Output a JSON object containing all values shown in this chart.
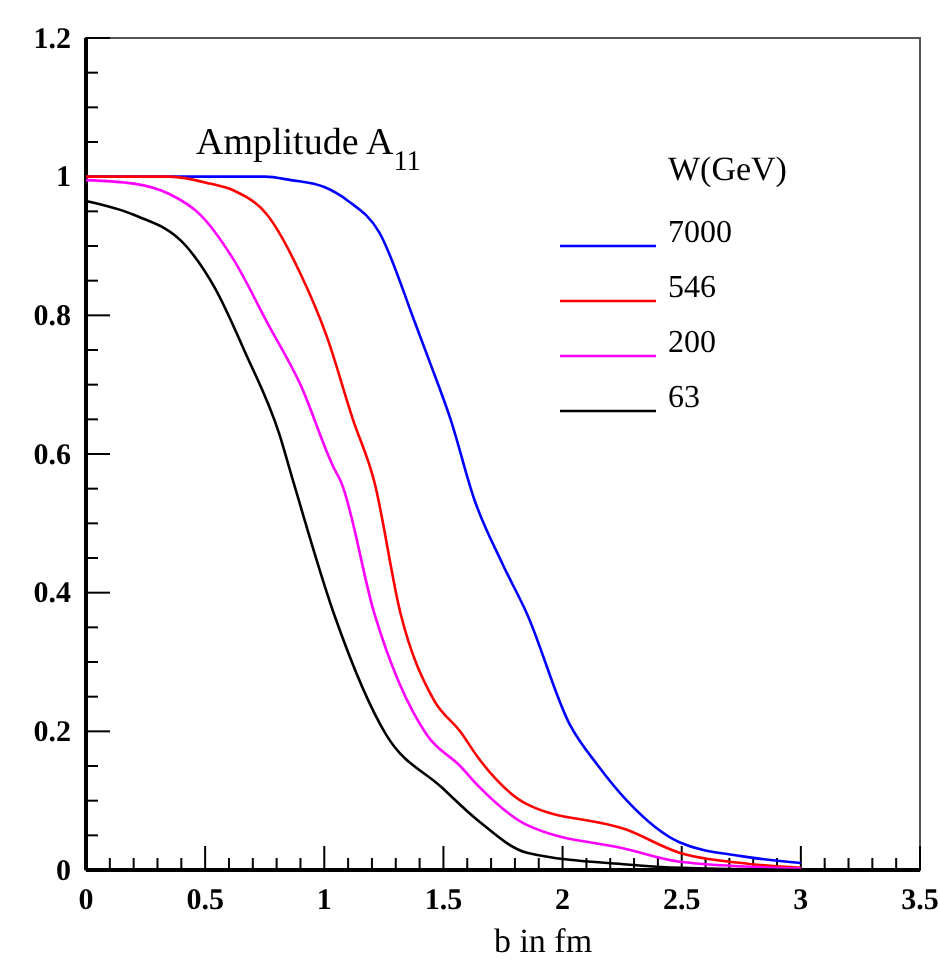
{
  "chart_data": {
    "type": "line",
    "title": "Amplitude A$_{11}$",
    "xlabel": "b in fm",
    "legend_title": "W(GeV)",
    "legend": "top right",
    "grid": false,
    "line_style": "solid",
    "marker": "none",
    "xlim": [
      0,
      3.5
    ],
    "ylim": [
      0,
      1.2
    ],
    "xticks": [
      0,
      {
        "value": 0.1,
        "label": null
      },
      {
        "value": 0.2,
        "label": null
      },
      {
        "value": 0.3,
        "label": null
      },
      {
        "value": 0.4,
        "label": null
      },
      0.5,
      {
        "value": 0.6,
        "label": null
      },
      {
        "value": 0.7,
        "label": null
      },
      {
        "value": 0.8,
        "label": null
      },
      {
        "value": 0.9,
        "label": null
      },
      1,
      {
        "value": 1.1,
        "label": null
      },
      {
        "value": 1.2,
        "label": null
      },
      {
        "value": 1.3,
        "label": null
      },
      {
        "value": 1.4,
        "label": null
      },
      1.5,
      {
        "value": 1.6,
        "label": null
      },
      {
        "value": 1.7,
        "label": null
      },
      {
        "value": 1.8,
        "label": null
      },
      {
        "value": 1.9,
        "label": null
      },
      2,
      {
        "value": 2.1,
        "label": null
      },
      {
        "value": 2.2,
        "label": null
      },
      {
        "value": 2.3,
        "label": null
      },
      {
        "value": 2.4,
        "label": null
      },
      2.5,
      {
        "value": 2.6,
        "label": null
      },
      {
        "value": 2.7,
        "label": null
      },
      {
        "value": 2.8,
        "label": null
      },
      {
        "value": 2.9,
        "label": null
      },
      3,
      {
        "value": 3.1,
        "label": null
      },
      {
        "value": 3.2,
        "label": null
      },
      {
        "value": 3.3,
        "label": null
      },
      {
        "value": 3.4,
        "label": null
      },
      3.5
    ],
    "yticks": [
      0,
      {
        "value": 0.05,
        "label": null
      },
      {
        "value": 0.1,
        "label": null
      },
      {
        "value": 0.15,
        "label": null
      },
      0.2,
      {
        "value": 0.25,
        "label": null
      },
      {
        "value": 0.3,
        "label": null
      },
      {
        "value": 0.35,
        "label": null
      },
      0.4,
      {
        "value": 0.45,
        "label": null
      },
      {
        "value": 0.5,
        "label": null
      },
      {
        "value": 0.55,
        "label": null
      },
      0.6,
      {
        "value": 0.65,
        "label": null
      },
      {
        "value": 0.7,
        "label": null
      },
      {
        "value": 0.75,
        "label": null
      },
      0.8,
      {
        "value": 0.85,
        "label": null
      },
      {
        "value": 0.9,
        "label": null
      },
      {
        "value": 0.95,
        "label": null
      },
      1,
      {
        "value": 1.05,
        "label": null
      },
      {
        "value": 1.1,
        "label": null
      },
      {
        "value": 1.15,
        "label": null
      },
      1.2
    ],
    "series": [
      {
        "name": "7000",
        "color": "#0000ff",
        "x": [
          0,
          0.6,
          0.75,
          0.86,
          1.0,
          1.1,
          1.23,
          1.38,
          1.44,
          1.53,
          1.63,
          1.75,
          1.85,
          2.03,
          2.15,
          2.27,
          2.49,
          2.75,
          3.0
        ],
        "values": [
          1,
          1,
          1,
          0.995,
          0.985,
          0.965,
          0.92,
          0.79,
          0.735,
          0.65,
          0.534,
          0.44,
          0.37,
          0.21,
          0.15,
          0.1,
          0.04,
          0.02,
          0.01
        ]
      },
      {
        "name": "546",
        "color": "#ff0000",
        "x": [
          0,
          0.2,
          0.35,
          0.52,
          0.62,
          0.76,
          0.9,
          1.01,
          1.12,
          1.21,
          1.32,
          1.46,
          1.57,
          1.65,
          1.85,
          2.27,
          2.49,
          2.75,
          3.0
        ],
        "values": [
          1,
          1,
          1,
          0.99,
          0.98,
          0.945,
          0.86,
          0.77,
          0.65,
          0.56,
          0.37,
          0.245,
          0.2,
          0.16,
          0.095,
          0.058,
          0.025,
          0.01,
          0.003
        ]
      },
      {
        "name": "200",
        "color": "#ff00ff",
        "x": [
          0,
          0.2,
          0.35,
          0.48,
          0.62,
          0.76,
          0.9,
          1.04,
          1.07,
          1.21,
          1.43,
          1.57,
          1.65,
          1.85,
          2.27,
          2.49,
          3.0
        ],
        "values": [
          0.995,
          0.99,
          0.975,
          0.945,
          0.88,
          0.79,
          0.7,
          0.58,
          0.56,
          0.37,
          0.195,
          0.15,
          0.12,
          0.065,
          0.03,
          0.012,
          0.002
        ]
      },
      {
        "name": "63",
        "color": "#000000",
        "x": [
          0,
          0.2,
          0.42,
          0.54,
          0.67,
          0.81,
          0.87,
          1.04,
          1.26,
          1.49,
          1.65,
          1.85,
          2.27,
          2.5,
          3.0
        ],
        "values": [
          0.965,
          0.945,
          0.9,
          0.84,
          0.745,
          0.63,
          0.56,
          0.37,
          0.195,
          0.12,
          0.07,
          0.025,
          0.008,
          0.003,
          0
        ]
      }
    ]
  }
}
